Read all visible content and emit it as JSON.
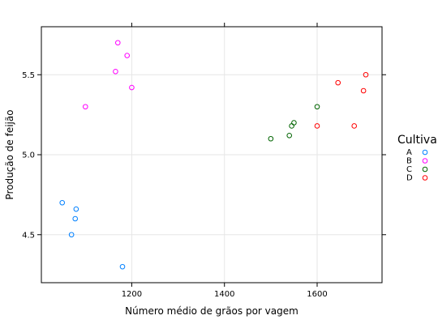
{
  "chart_data": {
    "type": "scatter",
    "xlabel": "Número médio de grãos por vagem",
    "ylabel": "Produção de feijão",
    "xlim": [
      1005,
      1740
    ],
    "ylim": [
      4.2,
      5.8
    ],
    "x_ticks": [
      1200,
      1400,
      1600
    ],
    "y_ticks": [
      4.5,
      5.0,
      5.5
    ],
    "x_tick_labels": [
      "1200",
      "1400",
      "1600"
    ],
    "y_tick_labels": [
      "4.5",
      "5.0",
      "5.5"
    ],
    "grid": true,
    "legend": {
      "title": "Cultivar",
      "placement": "right"
    },
    "series": [
      {
        "name": "A",
        "color": "#0080ff",
        "points": [
          {
            "x": 1050,
            "y": 4.7
          },
          {
            "x": 1080,
            "y": 4.66
          },
          {
            "x": 1078,
            "y": 4.6
          },
          {
            "x": 1070,
            "y": 4.5
          },
          {
            "x": 1180,
            "y": 4.3
          }
        ]
      },
      {
        "name": "B",
        "color": "#ff00ff",
        "points": [
          {
            "x": 1170,
            "y": 5.7
          },
          {
            "x": 1190,
            "y": 5.62
          },
          {
            "x": 1165,
            "y": 5.52
          },
          {
            "x": 1200,
            "y": 5.42
          },
          {
            "x": 1100,
            "y": 5.3
          }
        ]
      },
      {
        "name": "C",
        "color": "#006400",
        "points": [
          {
            "x": 1600,
            "y": 5.3
          },
          {
            "x": 1550,
            "y": 5.2
          },
          {
            "x": 1545,
            "y": 5.18
          },
          {
            "x": 1540,
            "y": 5.12
          },
          {
            "x": 1500,
            "y": 5.1
          }
        ]
      },
      {
        "name": "D",
        "color": "#ff0000",
        "points": [
          {
            "x": 1705,
            "y": 5.5
          },
          {
            "x": 1645,
            "y": 5.45
          },
          {
            "x": 1700,
            "y": 5.4
          },
          {
            "x": 1600,
            "y": 5.18
          },
          {
            "x": 1680,
            "y": 5.18
          }
        ]
      }
    ]
  }
}
